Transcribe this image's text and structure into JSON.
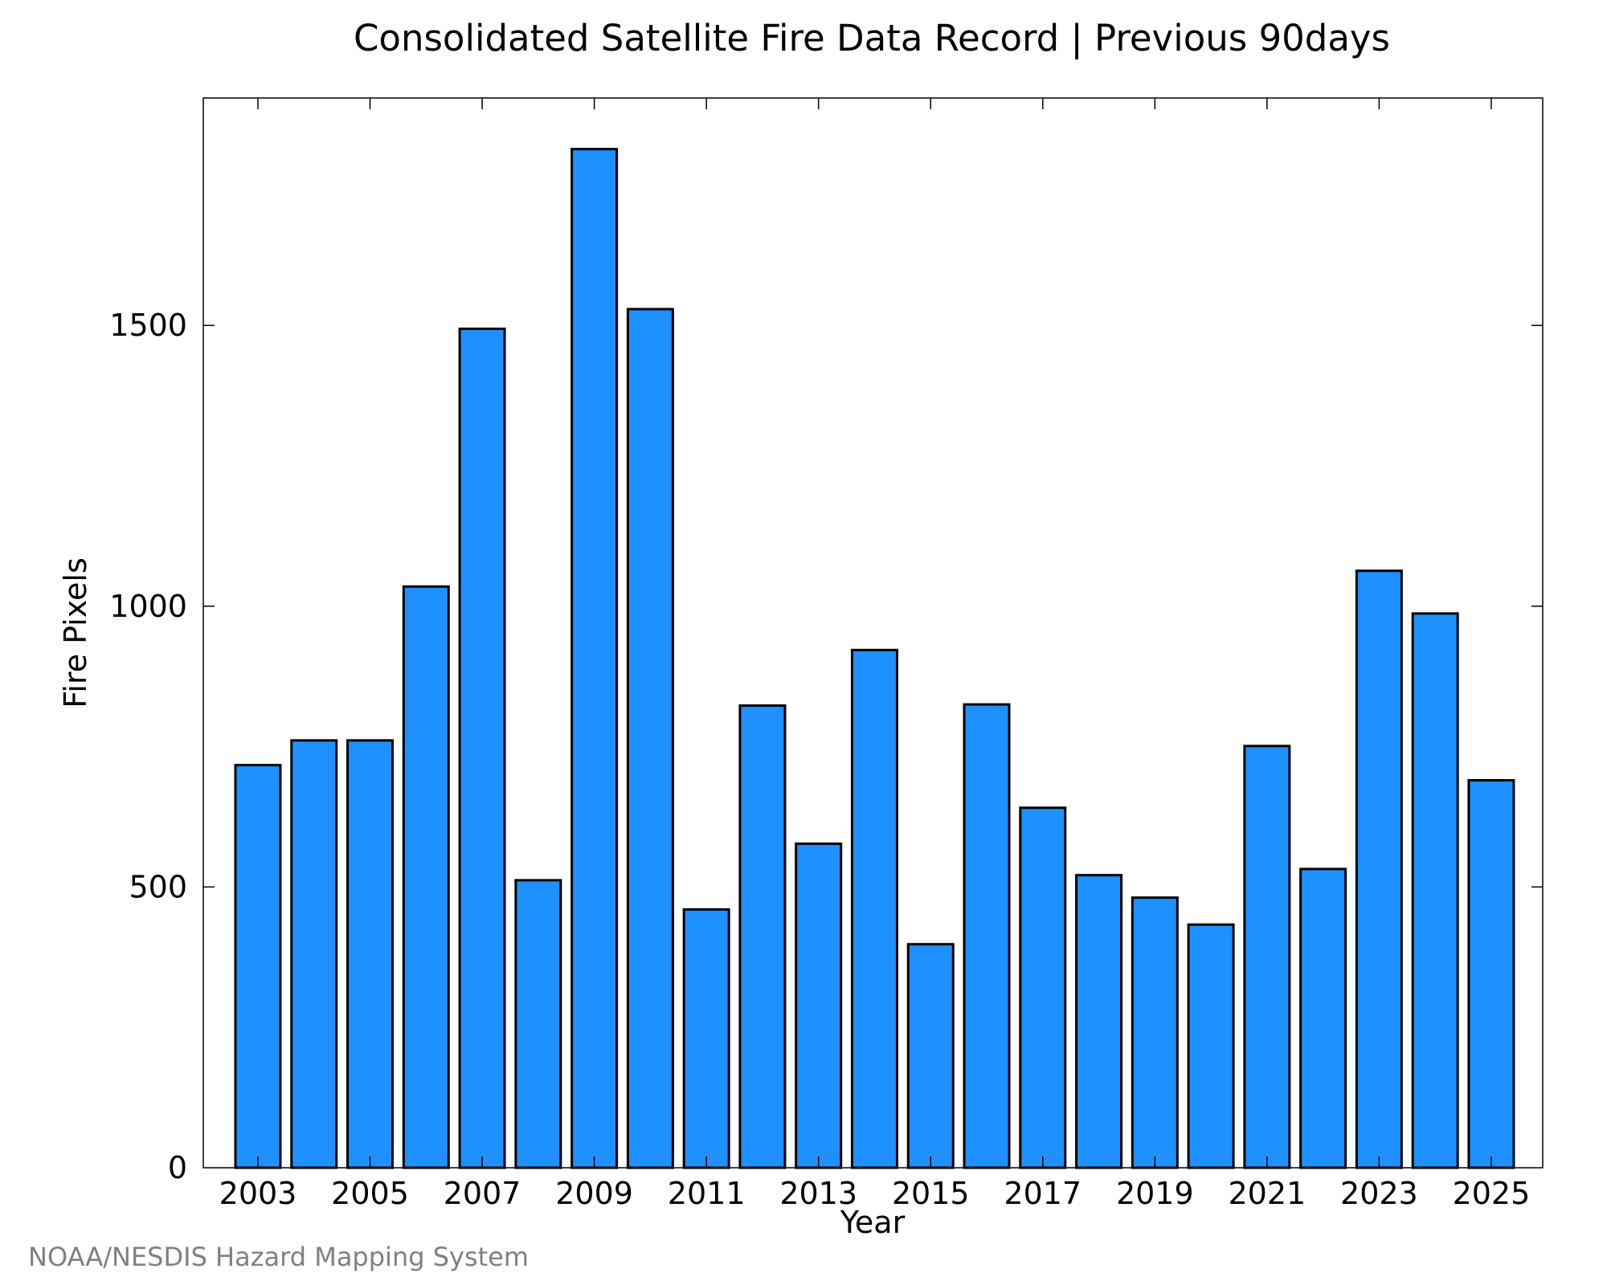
{
  "chart_data": {
    "type": "bar",
    "title": "Consolidated Satellite Fire Data Record | Previous 90days",
    "xlabel": "Year",
    "ylabel": "Fire Pixels",
    "categories": [
      "2003",
      "2004",
      "2005",
      "2006",
      "2007",
      "2008",
      "2009",
      "2010",
      "2011",
      "2012",
      "2013",
      "2014",
      "2015",
      "2016",
      "2017",
      "2018",
      "2019",
      "2020",
      "2021",
      "2022",
      "2023",
      "2024",
      "2025"
    ],
    "values": [
      717,
      761,
      761,
      1035,
      1494,
      512,
      1814,
      1529,
      460,
      823,
      577,
      922,
      398,
      825,
      641,
      521,
      481,
      433,
      751,
      532,
      1063,
      987,
      690
    ],
    "x_tick_labels": [
      "2003",
      "2005",
      "2007",
      "2009",
      "2011",
      "2013",
      "2015",
      "2017",
      "2019",
      "2021",
      "2023",
      "2025"
    ],
    "y_tick_labels": [
      "0",
      "500",
      "1000",
      "1500"
    ],
    "y_ticks": [
      0,
      500,
      1000,
      1500
    ],
    "ylim": [
      0,
      1905
    ],
    "bar_color": "#1e90ff",
    "grid": false,
    "legend": "none"
  },
  "credit": "NOAA/NESDIS Hazard Mapping System"
}
